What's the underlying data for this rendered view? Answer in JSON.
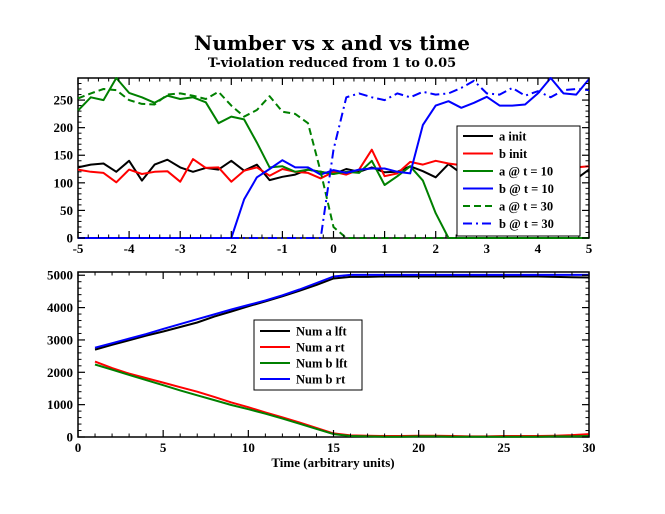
{
  "figure": {
    "title": "Number vs x and vs time",
    "subtitle": "T-violation reduced from 1 to 0.05"
  },
  "chart_data": [
    {
      "type": "line",
      "title": "",
      "xlabel": "",
      "ylabel": "",
      "xlim": [
        -5,
        5
      ],
      "ylim": [
        0,
        290
      ],
      "xticks": [
        -5,
        -4,
        -3,
        -2,
        -1,
        0,
        1,
        2,
        3,
        4,
        5
      ],
      "yticks": [
        0,
        50,
        100,
        150,
        200,
        250
      ],
      "legend_position": "right",
      "x": [
        -5.0,
        -4.75,
        -4.5,
        -4.25,
        -4.0,
        -3.75,
        -3.5,
        -3.25,
        -3.0,
        -2.75,
        -2.5,
        -2.25,
        -2.0,
        -1.75,
        -1.5,
        -1.25,
        -1.0,
        -0.75,
        -0.5,
        -0.25,
        0.0,
        0.25,
        0.5,
        0.75,
        1.0,
        1.25,
        1.5,
        1.75,
        2.0,
        2.25,
        2.5,
        2.75,
        3.0,
        3.25,
        3.5,
        3.75,
        4.0,
        4.25,
        4.5,
        4.75,
        5.0
      ],
      "series": [
        {
          "name": "a init",
          "color": "#000000",
          "dash": "solid",
          "values": [
            128,
            133,
            135,
            120,
            140,
            104,
            133,
            142,
            128,
            120,
            127,
            124,
            140,
            122,
            133,
            105,
            111,
            115,
            124,
            120,
            116,
            125,
            120,
            128,
            119,
            120,
            130,
            121,
            110,
            134,
            117,
            128,
            128,
            126,
            129,
            128,
            132,
            127,
            125,
            107,
            124
          ]
        },
        {
          "name": "b init",
          "color": "#ff0000",
          "dash": "solid",
          "values": [
            124,
            120,
            118,
            101,
            124,
            116,
            120,
            121,
            102,
            143,
            127,
            128,
            102,
            122,
            128,
            113,
            125,
            120,
            118,
            108,
            120,
            115,
            124,
            160,
            112,
            117,
            138,
            133,
            140,
            135,
            132,
            125,
            127,
            126,
            133,
            131,
            133,
            135,
            130,
            128,
            130
          ]
        },
        {
          "name": "a @ t = 10",
          "color": "#008000",
          "dash": "solid",
          "values": [
            231,
            255,
            250,
            290,
            263,
            255,
            245,
            258,
            252,
            255,
            246,
            208,
            220,
            215,
            173,
            128,
            130,
            120,
            124,
            120,
            116,
            120,
            118,
            140,
            96,
            112,
            130,
            104,
            45,
            0,
            0,
            0,
            0,
            0,
            0,
            0,
            0,
            0,
            0,
            0,
            0
          ]
        },
        {
          "name": "b @ t = 10",
          "color": "#0000ff",
          "dash": "solid",
          "values": [
            0,
            0,
            0,
            0,
            0,
            0,
            0,
            0,
            0,
            0,
            0,
            0,
            0,
            70,
            110,
            125,
            141,
            128,
            128,
            115,
            123,
            118,
            124,
            126,
            126,
            120,
            117,
            205,
            240,
            248,
            236,
            245,
            256,
            240,
            240,
            242,
            262,
            290,
            262,
            260,
            288
          ]
        },
        {
          "name": "a @ t = 30",
          "color": "#008000",
          "dash": "dashed",
          "values": [
            253,
            262,
            270,
            268,
            250,
            243,
            242,
            260,
            262,
            258,
            252,
            265,
            240,
            220,
            232,
            257,
            229,
            225,
            208,
            120,
            20,
            0,
            0,
            0,
            0,
            0,
            0,
            0,
            0,
            0,
            0,
            0,
            0,
            0,
            0,
            0,
            0,
            0,
            0,
            0,
            0
          ]
        },
        {
          "name": "b @ t = 30",
          "color": "#0000ff",
          "dash": "dashdot",
          "values": [
            0,
            0,
            0,
            0,
            0,
            0,
            0,
            0,
            0,
            0,
            0,
            0,
            0,
            0,
            0,
            0,
            0,
            0,
            0,
            0,
            160,
            255,
            262,
            255,
            250,
            262,
            255,
            265,
            260,
            262,
            272,
            285,
            262,
            260,
            272,
            258,
            266,
            255,
            268,
            270,
            268
          ]
        }
      ]
    },
    {
      "type": "line",
      "title": "",
      "xlabel": "Time (arbitrary units)",
      "ylabel": "",
      "xlim": [
        0,
        30
      ],
      "ylim": [
        0,
        5100
      ],
      "xticks": [
        0,
        5,
        10,
        15,
        20,
        25,
        30
      ],
      "yticks": [
        0,
        1000,
        2000,
        3000,
        4000,
        5000
      ],
      "legend_position": "center-left",
      "x": [
        1,
        2,
        3,
        4,
        5,
        6,
        7,
        8,
        9,
        10,
        11,
        12,
        13,
        14,
        15,
        16,
        17,
        18,
        19,
        20,
        21,
        22,
        23,
        24,
        25,
        26,
        27,
        28,
        29,
        30
      ],
      "series": [
        {
          "name": "Num a lft",
          "color": "#000000",
          "values": [
            2700,
            2850,
            2990,
            3130,
            3260,
            3400,
            3540,
            3720,
            3880,
            4040,
            4190,
            4350,
            4520,
            4700,
            4900,
            4950,
            4950,
            4960,
            4960,
            4960,
            4960,
            4960,
            4960,
            4960,
            4960,
            4960,
            4960,
            4950,
            4940,
            4930
          ]
        },
        {
          "name": "Num a rt",
          "color": "#ff0000",
          "values": [
            2330,
            2130,
            1960,
            1820,
            1680,
            1540,
            1400,
            1240,
            1070,
            920,
            760,
            610,
            450,
            280,
            110,
            50,
            40,
            30,
            30,
            40,
            40,
            30,
            20,
            20,
            30,
            30,
            30,
            40,
            60,
            90
          ]
        },
        {
          "name": "Num b lft",
          "color": "#008000",
          "values": [
            2240,
            2080,
            1920,
            1760,
            1600,
            1440,
            1290,
            1140,
            990,
            860,
            720,
            570,
            410,
            250,
            90,
            30,
            20,
            10,
            10,
            20,
            20,
            10,
            10,
            10,
            10,
            10,
            10,
            20,
            20,
            30
          ]
        },
        {
          "name": "Num b rt",
          "color": "#0000ff",
          "values": [
            2760,
            2900,
            3040,
            3180,
            3340,
            3490,
            3640,
            3790,
            3940,
            4080,
            4220,
            4380,
            4560,
            4760,
            4960,
            5010,
            5010,
            5010,
            5010,
            5010,
            5010,
            5010,
            5010,
            5010,
            5010,
            5010,
            5010,
            5010,
            5010,
            5010
          ]
        }
      ]
    }
  ]
}
